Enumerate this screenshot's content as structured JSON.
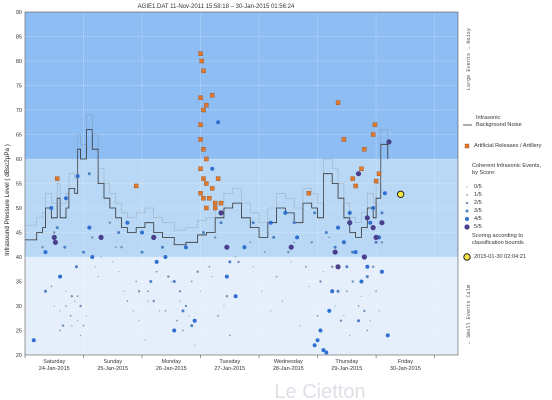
{
  "header": {
    "title": "AGIE1.DAT   11-Nov-2011 15:58:18   –   30-Jan-2015 01:56:24"
  },
  "watermark": "Le Cietton",
  "chart_data": {
    "type": "scatter",
    "ylabel": "Infrasound Pressure Level  ( dBsc2µPa )",
    "ylim": [
      20,
      90
    ],
    "yticks": [
      20,
      25,
      30,
      35,
      40,
      45,
      50,
      55,
      60,
      65,
      70,
      75,
      80,
      85,
      90
    ],
    "xlim": [
      0,
      7.4
    ],
    "days": [
      {
        "day": "Saturday",
        "date": "24-Jan-2015"
      },
      {
        "day": "Sunday",
        "date": "25-Jan-2015"
      },
      {
        "day": "Monday",
        "date": "26-Jan-2015"
      },
      {
        "day": "Tuesday",
        "date": "27-Jan-2015"
      },
      {
        "day": "Wednesday",
        "date": "28-Jan-2015"
      },
      {
        "day": "Thursday",
        "date": "29-Jan-2015"
      },
      {
        "day": "Friday",
        "date": "30-Jan-2015"
      }
    ],
    "bands": [
      {
        "from": 60,
        "to": 90,
        "color": "#8dbdf2"
      },
      {
        "from": 40,
        "to": 60,
        "color": "#b8d8f6"
      },
      {
        "from": 20,
        "to": 40,
        "color": "#e4effb"
      }
    ],
    "noise": [
      [
        0,
        43.5
      ],
      [
        0.15,
        43.5
      ],
      [
        0.2,
        45
      ],
      [
        0.3,
        46
      ],
      [
        0.35,
        50
      ],
      [
        0.45,
        48
      ],
      [
        0.55,
        52
      ],
      [
        0.6,
        48
      ],
      [
        0.7,
        50
      ],
      [
        0.75,
        54
      ],
      [
        0.85,
        53
      ],
      [
        0.9,
        62
      ],
      [
        0.95,
        60
      ],
      [
        1.05,
        66
      ],
      [
        1.15,
        62
      ],
      [
        1.25,
        55
      ],
      [
        1.35,
        52
      ],
      [
        1.45,
        50
      ],
      [
        1.55,
        48
      ],
      [
        1.65,
        46
      ],
      [
        1.75,
        45
      ],
      [
        1.9,
        46
      ],
      [
        2.05,
        47
      ],
      [
        2.2,
        45
      ],
      [
        2.35,
        44
      ],
      [
        2.55,
        42.5
      ],
      [
        2.75,
        43
      ],
      [
        2.95,
        44.5
      ],
      [
        3.1,
        45
      ],
      [
        3.25,
        48
      ],
      [
        3.4,
        50
      ],
      [
        3.55,
        51
      ],
      [
        3.7,
        48
      ],
      [
        3.85,
        46
      ],
      [
        4.0,
        44
      ],
      [
        4.15,
        47
      ],
      [
        4.3,
        50
      ],
      [
        4.45,
        49
      ],
      [
        4.6,
        47
      ],
      [
        4.75,
        51
      ],
      [
        4.9,
        50
      ],
      [
        5.0,
        48
      ],
      [
        5.1,
        57
      ],
      [
        5.25,
        55
      ],
      [
        5.35,
        52
      ],
      [
        5.45,
        48
      ],
      [
        5.55,
        45
      ],
      [
        5.65,
        44
      ],
      [
        5.75,
        46
      ],
      [
        5.85,
        50
      ],
      [
        5.95,
        48
      ],
      [
        6.0,
        52
      ],
      [
        6.08,
        63
      ],
      [
        6.2,
        60
      ]
    ],
    "series": [
      {
        "name": "Artificial Releases / Artillery",
        "symbol": "square",
        "color": "#e07a2e",
        "points": [
          [
            0.55,
            56
          ],
          [
            1.9,
            54.5
          ],
          [
            3.0,
            81.5
          ],
          [
            3.02,
            80
          ],
          [
            3.05,
            78
          ],
          [
            3.0,
            72.5
          ],
          [
            3.1,
            71
          ],
          [
            3.2,
            73
          ],
          [
            3.05,
            70
          ],
          [
            3.0,
            67
          ],
          [
            3.0,
            64
          ],
          [
            3.05,
            62
          ],
          [
            3.1,
            60
          ],
          [
            3.0,
            58
          ],
          [
            3.05,
            56
          ],
          [
            3.1,
            55
          ],
          [
            3.2,
            54
          ],
          [
            3.0,
            53
          ],
          [
            3.15,
            52
          ],
          [
            3.25,
            51
          ],
          [
            3.05,
            52
          ],
          [
            3.1,
            50
          ],
          [
            3.25,
            50
          ],
          [
            3.35,
            51
          ],
          [
            3.3,
            56
          ],
          [
            4.85,
            53
          ],
          [
            5.35,
            71.5
          ],
          [
            5.45,
            64
          ],
          [
            5.6,
            56
          ],
          [
            5.65,
            54.5
          ],
          [
            5.75,
            58
          ],
          [
            5.8,
            62
          ],
          [
            5.95,
            65
          ],
          [
            5.98,
            67
          ],
          [
            6.0,
            55.5
          ],
          [
            6.05,
            57
          ]
        ]
      },
      {
        "name": "Score 0/5",
        "symbol": "dot",
        "size": 0.6,
        "color": "#8aa0b8",
        "points": [
          [
            0.5,
            30
          ],
          [
            0.6,
            29
          ],
          [
            0.7,
            33
          ],
          [
            0.8,
            26
          ],
          [
            0.85,
            31
          ],
          [
            0.9,
            27
          ],
          [
            0.95,
            24
          ],
          [
            1.05,
            28
          ],
          [
            1.2,
            38
          ],
          [
            1.25,
            36
          ],
          [
            1.3,
            40
          ],
          [
            1.5,
            39
          ],
          [
            1.6,
            37
          ],
          [
            1.7,
            33
          ],
          [
            1.85,
            29
          ],
          [
            1.95,
            27
          ],
          [
            2.05,
            23
          ],
          [
            2.1,
            31
          ],
          [
            2.3,
            29
          ],
          [
            2.5,
            35
          ],
          [
            2.65,
            31
          ],
          [
            2.8,
            28
          ],
          [
            2.9,
            22
          ],
          [
            3.0,
            33
          ],
          [
            3.2,
            36
          ],
          [
            3.4,
            30
          ],
          [
            3.6,
            40
          ],
          [
            3.75,
            42
          ],
          [
            3.9,
            38
          ],
          [
            4.05,
            33
          ],
          [
            4.2,
            29
          ],
          [
            4.4,
            31
          ],
          [
            4.55,
            39
          ],
          [
            4.7,
            26
          ],
          [
            4.85,
            34
          ],
          [
            5.1,
            37
          ],
          [
            5.3,
            30
          ],
          [
            5.45,
            28
          ],
          [
            5.55,
            24
          ],
          [
            5.75,
            32
          ],
          [
            5.9,
            27
          ],
          [
            6.05,
            29
          ]
        ]
      },
      {
        "name": "Score 1/5",
        "symbol": "dot",
        "size": 0.9,
        "color": "#7f98b5",
        "points": [
          [
            0.45,
            34
          ],
          [
            0.6,
            25
          ],
          [
            0.7,
            30
          ],
          [
            0.78,
            28
          ],
          [
            0.9,
            32
          ],
          [
            1.0,
            26
          ],
          [
            1.3,
            44
          ],
          [
            1.55,
            42
          ],
          [
            1.75,
            31
          ],
          [
            1.9,
            35
          ],
          [
            2.1,
            33
          ],
          [
            2.25,
            37
          ],
          [
            2.4,
            29
          ],
          [
            2.6,
            27
          ],
          [
            2.7,
            25
          ],
          [
            2.85,
            35
          ],
          [
            3.15,
            38
          ],
          [
            3.3,
            28
          ],
          [
            3.5,
            24
          ],
          [
            3.85,
            43
          ],
          [
            4.1,
            41
          ],
          [
            4.3,
            36
          ],
          [
            4.6,
            43
          ],
          [
            4.8,
            38
          ],
          [
            5.0,
            28
          ],
          [
            5.2,
            44
          ],
          [
            5.5,
            33
          ],
          [
            5.7,
            30
          ],
          [
            5.85,
            25
          ],
          [
            6.0,
            33
          ]
        ]
      },
      {
        "name": "Score 2/5",
        "symbol": "dot",
        "size": 1.2,
        "color": "#6f8fb5",
        "points": [
          [
            0.3,
            42
          ],
          [
            0.5,
            45
          ],
          [
            0.65,
            26
          ],
          [
            0.8,
            32
          ],
          [
            0.95,
            30
          ],
          [
            1.15,
            44
          ],
          [
            1.45,
            47
          ],
          [
            1.65,
            42
          ],
          [
            1.95,
            33
          ],
          [
            2.2,
            31
          ],
          [
            2.45,
            36
          ],
          [
            2.65,
            33
          ],
          [
            2.75,
            30
          ],
          [
            2.95,
            37
          ],
          [
            3.25,
            44
          ],
          [
            3.45,
            32
          ],
          [
            3.65,
            39
          ],
          [
            4.15,
            45
          ],
          [
            4.5,
            41
          ],
          [
            4.9,
            43
          ],
          [
            5.05,
            35
          ],
          [
            5.25,
            38
          ],
          [
            5.4,
            27
          ],
          [
            5.6,
            35
          ],
          [
            5.8,
            29
          ],
          [
            5.95,
            38
          ],
          [
            6.1,
            43
          ]
        ]
      },
      {
        "name": "Score 3/5",
        "symbol": "dot",
        "size": 1.5,
        "color": "#4d7fc4",
        "points": [
          [
            0.35,
            33
          ],
          [
            0.55,
            46
          ],
          [
            0.68,
            42
          ],
          [
            0.88,
            38
          ],
          [
            1.0,
            41
          ],
          [
            1.1,
            57
          ],
          [
            1.6,
            45
          ],
          [
            2.0,
            41
          ],
          [
            2.15,
            35
          ],
          [
            2.35,
            42
          ],
          [
            2.55,
            35
          ],
          [
            2.7,
            29
          ],
          [
            2.85,
            26
          ],
          [
            3.05,
            45
          ],
          [
            3.35,
            47
          ],
          [
            3.5,
            39
          ],
          [
            3.9,
            47
          ],
          [
            4.25,
            44
          ],
          [
            4.6,
            47
          ],
          [
            4.95,
            49
          ],
          [
            5.15,
            45
          ],
          [
            5.3,
            42
          ],
          [
            5.35,
            33
          ],
          [
            5.5,
            38
          ],
          [
            5.6,
            41
          ],
          [
            5.7,
            27
          ],
          [
            5.85,
            36
          ],
          [
            6.0,
            43
          ],
          [
            6.1,
            49
          ]
        ]
      },
      {
        "name": "Score 4/5",
        "symbol": "dot",
        "size": 2.0,
        "color": "#2f6fd0",
        "points": [
          [
            0.15,
            23
          ],
          [
            0.35,
            41
          ],
          [
            0.45,
            50
          ],
          [
            0.6,
            36
          ],
          [
            0.7,
            52
          ],
          [
            0.9,
            56.5
          ],
          [
            1.1,
            46
          ],
          [
            1.15,
            40
          ],
          [
            1.75,
            47
          ],
          [
            2.0,
            45
          ],
          [
            2.25,
            39
          ],
          [
            2.4,
            40
          ],
          [
            2.55,
            25
          ],
          [
            2.75,
            42
          ],
          [
            2.9,
            27
          ],
          [
            3.2,
            58
          ],
          [
            3.3,
            67.5
          ],
          [
            3.45,
            36
          ],
          [
            3.6,
            32
          ],
          [
            3.75,
            42
          ],
          [
            4.2,
            47
          ],
          [
            4.45,
            49
          ],
          [
            4.65,
            44
          ],
          [
            4.95,
            22
          ],
          [
            5.0,
            23
          ],
          [
            5.05,
            25
          ],
          [
            5.1,
            21
          ],
          [
            5.15,
            20.5
          ],
          [
            5.2,
            29
          ],
          [
            5.25,
            33
          ],
          [
            5.35,
            46
          ],
          [
            5.45,
            43
          ],
          [
            5.55,
            49
          ],
          [
            5.65,
            41
          ],
          [
            5.75,
            35
          ],
          [
            5.85,
            38
          ],
          [
            5.9,
            47
          ],
          [
            5.95,
            50
          ],
          [
            6.05,
            44
          ],
          [
            6.15,
            53
          ],
          [
            6.2,
            24
          ],
          [
            6.1,
            37
          ]
        ]
      },
      {
        "name": "Score 5/5",
        "symbol": "dot",
        "size": 2.6,
        "color": "#4a3f8c",
        "points": [
          [
            0.5,
            44
          ],
          [
            0.52,
            43
          ],
          [
            1.3,
            44
          ],
          [
            2.2,
            44
          ],
          [
            3.35,
            49
          ],
          [
            3.45,
            42
          ],
          [
            4.55,
            42
          ],
          [
            5.3,
            41
          ],
          [
            5.55,
            47
          ],
          [
            5.7,
            57
          ],
          [
            5.85,
            48
          ],
          [
            5.95,
            46
          ],
          [
            6.0,
            44
          ],
          [
            6.1,
            47
          ],
          [
            6.22,
            63.5
          ],
          [
            5.35,
            38
          ],
          [
            5.8,
            40
          ]
        ]
      }
    ],
    "highlight": {
      "x": 6.42,
      "y": 52.8,
      "label": "2015-01-30 02:04:21"
    }
  },
  "legend": {
    "noise": "Infrasonic\nBackground Noise",
    "artillery": "Artificial Releases / Artillery",
    "coherent": "Coherent Infrasonic Events,\nby Score:",
    "scores": [
      "0/5",
      "1/5",
      "2/5",
      "3/5",
      "4/5",
      "5/5"
    ],
    "scoring": "Scoring according to\nclassification bounds",
    "highlight": "2015-01-30 02:04:21",
    "large_events": "Large Events  →  Noisy",
    "small_events": "←  Small Events  Calm"
  }
}
